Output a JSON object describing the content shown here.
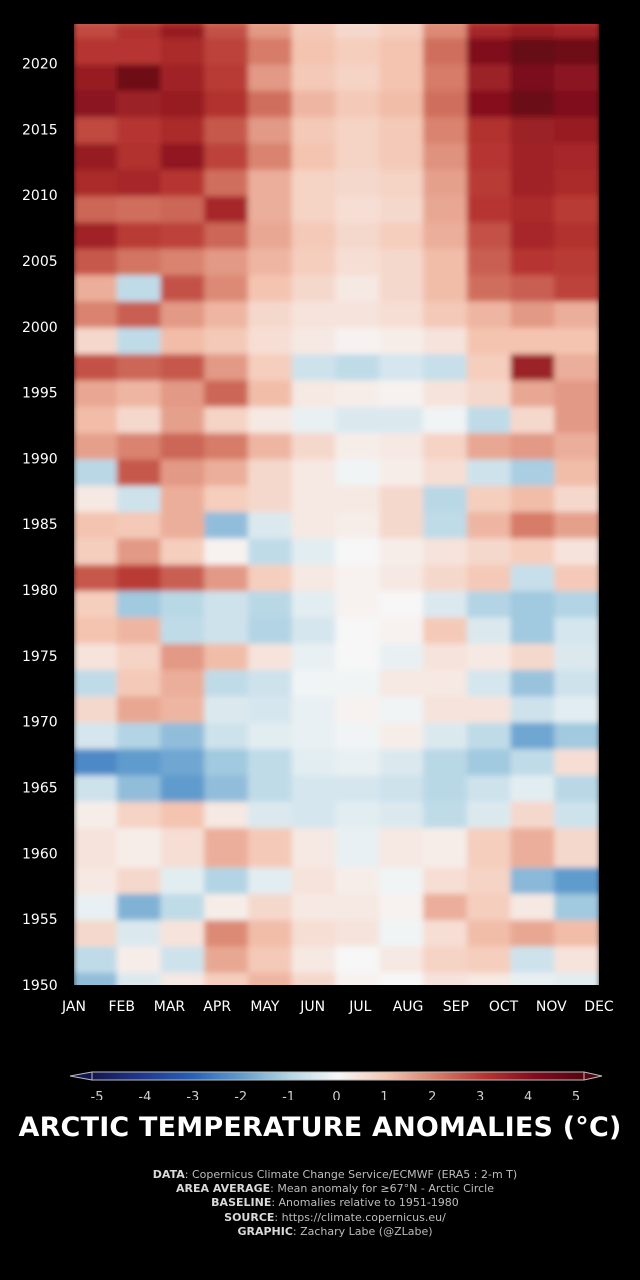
{
  "chart_data": {
    "type": "heatmap",
    "title": "ARCTIC TEMPERATURE ANOMALIES (°C)",
    "x_categories": [
      "JAN",
      "FEB",
      "MAR",
      "APR",
      "MAY",
      "JUN",
      "JUL",
      "AUG",
      "SEP",
      "OCT",
      "NOV",
      "DEC"
    ],
    "y_range": [
      1950,
      2023
    ],
    "y_ticks": [
      "1950",
      "1955",
      "1960",
      "1965",
      "1970",
      "1975",
      "1980",
      "1985",
      "1990",
      "1995",
      "2000",
      "2005",
      "2010",
      "2015",
      "2020"
    ],
    "colorbar": {
      "range": [
        -5,
        5
      ],
      "ticks": [
        "-5",
        "-4",
        "-3",
        "-2",
        "-1",
        "0",
        "1",
        "2",
        "3",
        "4",
        "5"
      ]
    },
    "anomaly_rows": [
      {
        "year": 1950,
        "values": [
          -1.4,
          -0.4,
          0.3,
          0.8,
          1.2,
          0.6,
          0.1,
          0.0,
          0.4,
          0.3,
          -0.2,
          -0.3
        ]
      },
      {
        "year": 1951,
        "values": [
          -0.8,
          0.2,
          -0.6,
          1.4,
          0.9,
          0.3,
          0.0,
          0.3,
          0.7,
          0.8,
          -0.6,
          0.4
        ]
      },
      {
        "year": 1953,
        "values": [
          0.6,
          -0.4,
          0.4,
          1.8,
          1.1,
          0.5,
          0.4,
          -0.1,
          0.5,
          1.1,
          1.4,
          1.1
        ]
      },
      {
        "year": 1955,
        "values": [
          -0.2,
          -1.6,
          -0.8,
          0.2,
          0.6,
          0.3,
          0.3,
          0.1,
          1.3,
          0.8,
          0.3,
          -1.2
        ]
      },
      {
        "year": 1957,
        "values": [
          0.3,
          0.6,
          -0.3,
          -1.0,
          -0.3,
          0.4,
          0.2,
          -0.1,
          0.5,
          0.7,
          -1.5,
          -2.0
        ]
      },
      {
        "year": 1959,
        "values": [
          0.4,
          0.2,
          0.5,
          1.3,
          0.9,
          0.3,
          -0.2,
          0.3,
          0.2,
          0.8,
          1.3,
          0.6
        ]
      },
      {
        "year": 1962,
        "values": [
          0.2,
          0.7,
          1.0,
          0.3,
          -0.4,
          -0.5,
          -0.3,
          -0.4,
          -0.8,
          -0.4,
          0.6,
          -0.6
        ]
      },
      {
        "year": 1964,
        "values": [
          -0.6,
          -1.4,
          -2.0,
          -1.4,
          -0.8,
          -0.5,
          -0.5,
          -0.6,
          -0.9,
          -0.6,
          -0.3,
          -0.9
        ]
      },
      {
        "year": 1966,
        "values": [
          -2.3,
          -2.0,
          -1.8,
          -1.2,
          -0.8,
          -0.3,
          -0.2,
          -0.4,
          -0.9,
          -1.2,
          -0.8,
          0.5
        ]
      },
      {
        "year": 1968,
        "values": [
          -0.5,
          -1.0,
          -1.4,
          -0.6,
          -0.3,
          -0.2,
          -0.1,
          0.2,
          -0.4,
          -0.8,
          -1.8,
          -1.2
        ]
      },
      {
        "year": 1970,
        "values": [
          0.6,
          1.4,
          1.2,
          -0.4,
          -0.5,
          -0.2,
          0.1,
          -0.1,
          0.4,
          0.4,
          -0.6,
          -0.3
        ]
      },
      {
        "year": 1972,
        "values": [
          -0.8,
          0.9,
          1.3,
          -0.8,
          -0.6,
          -0.1,
          -0.1,
          0.3,
          0.3,
          -0.5,
          -1.3,
          -0.6
        ]
      },
      {
        "year": 1974,
        "values": [
          0.4,
          0.7,
          1.6,
          1.1,
          0.4,
          -0.2,
          0.0,
          -0.2,
          0.4,
          0.3,
          0.6,
          -0.4
        ]
      },
      {
        "year": 1976,
        "values": [
          1.0,
          1.2,
          -0.8,
          -0.6,
          -1.0,
          -0.5,
          0.0,
          0.1,
          0.9,
          -0.4,
          -1.2,
          -0.5
        ]
      },
      {
        "year": 1978,
        "values": [
          0.8,
          -1.2,
          -0.9,
          -0.6,
          -0.9,
          -0.3,
          0.1,
          0.0,
          -0.4,
          -1.0,
          -1.2,
          -1.0
        ]
      },
      {
        "year": 1980,
        "values": [
          2.5,
          2.9,
          2.4,
          1.6,
          0.8,
          0.3,
          0.1,
          0.3,
          0.6,
          0.9,
          -0.7,
          0.9
        ]
      },
      {
        "year": 1982,
        "values": [
          0.8,
          1.6,
          0.8,
          0.1,
          -0.8,
          -0.3,
          0.0,
          0.2,
          0.4,
          0.6,
          0.8,
          0.4
        ]
      },
      {
        "year": 1984,
        "values": [
          1.0,
          0.9,
          1.3,
          -1.4,
          -0.4,
          0.3,
          0.2,
          0.6,
          -0.8,
          1.2,
          2.0,
          1.5
        ]
      },
      {
        "year": 1986,
        "values": [
          0.3,
          -0.6,
          1.3,
          0.8,
          0.6,
          0.3,
          0.3,
          0.6,
          -0.9,
          0.8,
          1.1,
          0.6
        ]
      },
      {
        "year": 1988,
        "values": [
          -0.9,
          2.5,
          1.6,
          1.3,
          0.6,
          0.3,
          -0.1,
          0.2,
          0.5,
          -0.6,
          -1.1,
          1.1
        ]
      },
      {
        "year": 1990,
        "values": [
          1.5,
          1.9,
          2.3,
          2.0,
          1.2,
          0.6,
          0.2,
          0.3,
          0.7,
          1.4,
          1.6,
          1.3
        ]
      },
      {
        "year": 1992,
        "values": [
          1.1,
          0.6,
          1.5,
          0.7,
          0.3,
          -0.2,
          -0.4,
          -0.4,
          -0.1,
          -0.8,
          0.6,
          1.6
        ]
      },
      {
        "year": 1994,
        "values": [
          1.4,
          1.2,
          1.6,
          2.3,
          1.1,
          0.3,
          0.2,
          0.1,
          0.4,
          0.6,
          1.4,
          1.6
        ]
      },
      {
        "year": 1996,
        "values": [
          2.6,
          2.3,
          2.5,
          1.6,
          0.8,
          -0.6,
          -0.8,
          -0.5,
          -0.7,
          0.8,
          3.5,
          1.3
        ]
      },
      {
        "year": 1998,
        "values": [
          0.6,
          -0.8,
          1.1,
          0.9,
          0.5,
          0.3,
          0.1,
          0.2,
          0.4,
          1.0,
          1.0,
          1.0
        ]
      },
      {
        "year": 2000,
        "values": [
          1.9,
          2.4,
          1.6,
          1.2,
          0.6,
          0.4,
          0.4,
          0.5,
          0.9,
          1.2,
          1.6,
          1.3
        ]
      },
      {
        "year": 2002,
        "values": [
          1.3,
          -0.8,
          2.6,
          1.8,
          1.0,
          0.6,
          0.3,
          0.6,
          1.1,
          2.2,
          2.4,
          2.8
        ]
      },
      {
        "year": 2004,
        "values": [
          2.5,
          2.1,
          1.9,
          1.6,
          1.2,
          0.8,
          0.5,
          0.6,
          1.1,
          2.4,
          3.0,
          2.9
        ]
      },
      {
        "year": 2006,
        "values": [
          3.4,
          2.9,
          2.8,
          2.3,
          1.4,
          0.9,
          0.6,
          0.8,
          1.3,
          2.6,
          3.3,
          3.1
        ]
      },
      {
        "year": 2008,
        "values": [
          2.3,
          2.2,
          2.3,
          3.3,
          1.3,
          0.7,
          0.5,
          0.6,
          1.4,
          3.0,
          3.2,
          2.9
        ]
      },
      {
        "year": 2010,
        "values": [
          3.2,
          3.3,
          3.0,
          2.2,
          1.3,
          0.7,
          0.6,
          0.7,
          1.5,
          2.9,
          3.4,
          3.2
        ]
      },
      {
        "year": 2012,
        "values": [
          3.6,
          3.1,
          3.7,
          2.8,
          1.9,
          1.0,
          0.7,
          0.9,
          1.7,
          3.0,
          3.4,
          3.3
        ]
      },
      {
        "year": 2014,
        "values": [
          2.7,
          3.0,
          3.2,
          2.5,
          1.6,
          0.9,
          0.7,
          0.9,
          1.9,
          3.1,
          3.5,
          3.6
        ]
      },
      {
        "year": 2016,
        "values": [
          3.8,
          3.5,
          3.6,
          3.1,
          2.2,
          1.2,
          0.9,
          1.1,
          2.2,
          3.9,
          4.5,
          4.0
        ]
      },
      {
        "year": 2018,
        "values": [
          3.6,
          4.4,
          3.4,
          2.9,
          1.6,
          0.9,
          0.7,
          1.0,
          2.0,
          3.5,
          4.1,
          3.8
        ]
      },
      {
        "year": 2020,
        "values": [
          3.0,
          3.0,
          3.2,
          2.8,
          2.0,
          1.0,
          0.8,
          1.0,
          2.2,
          4.0,
          4.6,
          4.4
        ]
      },
      {
        "year": 2022,
        "values": [
          2.7,
          3.1,
          3.6,
          2.6,
          1.6,
          0.9,
          0.6,
          0.8,
          1.8,
          3.3,
          3.6,
          3.4
        ]
      },
      {
        "year": 2023,
        "values": [
          2.4,
          2.6,
          2.9,
          2.2,
          1.4,
          0.8,
          0.5,
          0.7,
          1.6,
          2.8,
          3.2,
          3.0
        ]
      }
    ]
  },
  "credits": [
    {
      "label": "DATA",
      "text": ": Copernicus Climate Change Service/ECMWF (ERA5 : 2-m T)"
    },
    {
      "label": "AREA AVERAGE",
      "text": ": Mean anomaly for ≥67°N - Arctic Circle"
    },
    {
      "label": "BASELINE",
      "text": ": Anomalies relative to 1951-1980"
    },
    {
      "label": "SOURCE",
      "text": ": https://climate.copernicus.eu/"
    },
    {
      "label": "GRAPHIC",
      "text": ": Zachary Labe (@ZLabe)"
    }
  ]
}
